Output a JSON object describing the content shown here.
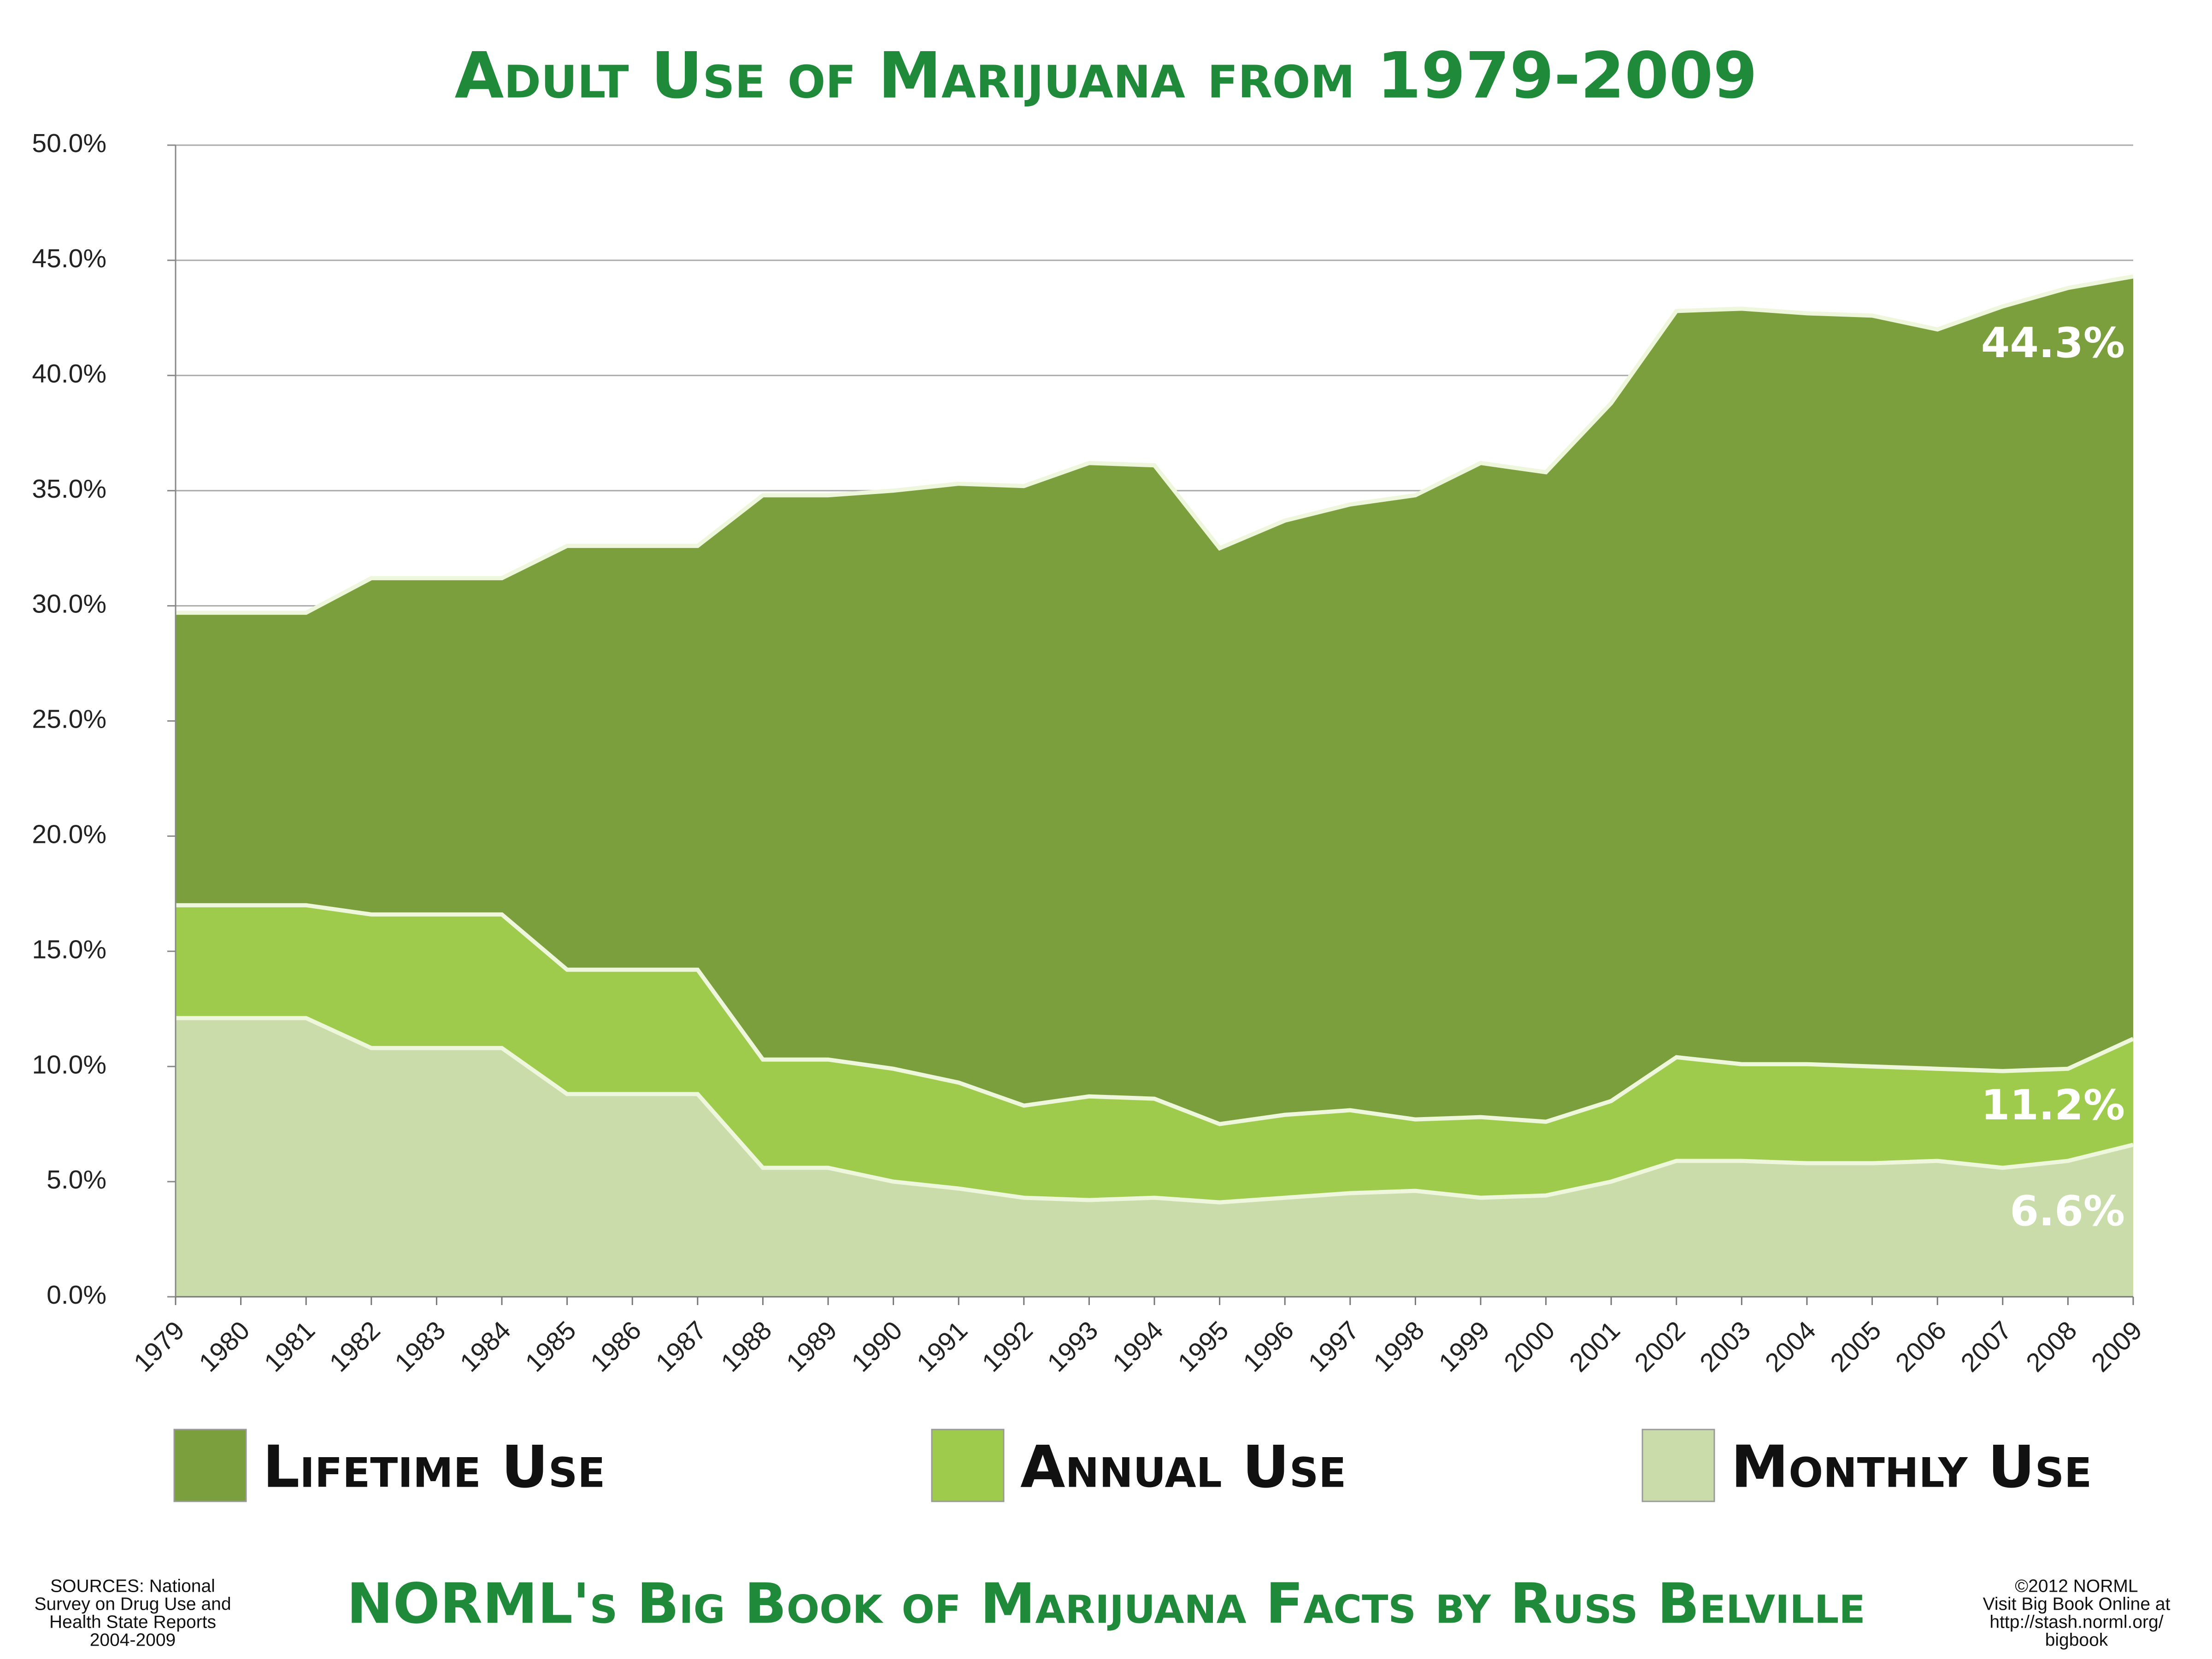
{
  "chart_data": {
    "type": "area",
    "title": "Adult Use of Marijuana from 1979-2009",
    "categories": [
      "1979",
      "1980",
      "1981",
      "1982",
      "1983",
      "1984",
      "1985",
      "1986",
      "1987",
      "1988",
      "1989",
      "1990",
      "1991",
      "1992",
      "1993",
      "1994",
      "1995",
      "1996",
      "1997",
      "1998",
      "1999",
      "2000",
      "2001",
      "2002",
      "2003",
      "2004",
      "2005",
      "2006",
      "2007",
      "2008",
      "2009"
    ],
    "series": [
      {
        "name": "Lifetime Use",
        "color": "#7b9f3c",
        "values": [
          29.7,
          29.7,
          29.7,
          31.2,
          31.2,
          31.2,
          32.6,
          32.6,
          32.6,
          34.8,
          34.8,
          35.0,
          35.3,
          35.2,
          36.2,
          36.1,
          32.5,
          33.7,
          34.4,
          34.8,
          36.2,
          35.8,
          38.8,
          42.8,
          42.9,
          42.7,
          42.6,
          42.0,
          43.0,
          43.8,
          44.3
        ],
        "value_labels": [
          null,
          null,
          null,
          null,
          null,
          null,
          null,
          null,
          null,
          null,
          null,
          null,
          null,
          null,
          null,
          null,
          null,
          null,
          null,
          null,
          null,
          null,
          null,
          null,
          null,
          null,
          null,
          null,
          null,
          null,
          "44.3%"
        ]
      },
      {
        "name": "Annual Use",
        "color": "#9fcb4c",
        "values": [
          17.0,
          17.0,
          17.0,
          16.6,
          16.6,
          16.6,
          14.2,
          14.2,
          14.2,
          10.3,
          10.3,
          9.9,
          9.3,
          8.3,
          8.7,
          8.6,
          7.5,
          7.9,
          8.1,
          7.7,
          7.8,
          7.6,
          8.5,
          10.4,
          10.1,
          10.1,
          10.0,
          9.9,
          9.8,
          9.9,
          11.2
        ],
        "value_labels": [
          null,
          null,
          null,
          null,
          null,
          null,
          null,
          null,
          null,
          null,
          null,
          null,
          null,
          null,
          null,
          null,
          null,
          null,
          null,
          null,
          null,
          null,
          null,
          null,
          null,
          null,
          null,
          null,
          null,
          null,
          "11.2%"
        ]
      },
      {
        "name": "Monthly Use",
        "color": "#c9dcaa",
        "values": [
          12.1,
          12.1,
          12.1,
          10.8,
          10.8,
          10.8,
          8.8,
          8.8,
          8.8,
          5.6,
          5.6,
          5.0,
          4.7,
          4.3,
          4.2,
          4.3,
          4.1,
          4.3,
          4.5,
          4.6,
          4.3,
          4.4,
          5.0,
          5.9,
          5.9,
          5.8,
          5.8,
          5.9,
          5.6,
          5.9,
          6.6
        ],
        "value_labels": [
          null,
          null,
          null,
          null,
          null,
          null,
          null,
          null,
          null,
          null,
          null,
          null,
          null,
          null,
          null,
          null,
          null,
          null,
          null,
          null,
          null,
          null,
          null,
          null,
          null,
          null,
          null,
          null,
          null,
          null,
          "6.6%"
        ]
      }
    ],
    "ylim": [
      0,
      50
    ],
    "yticks": [
      {
        "value": 0,
        "label": "0.0%"
      },
      {
        "value": 5,
        "label": "5.0%"
      },
      {
        "value": 10,
        "label": "10.0%"
      },
      {
        "value": 15,
        "label": "15.0%"
      },
      {
        "value": 20,
        "label": "20.0%"
      },
      {
        "value": 25,
        "label": "25.0%"
      },
      {
        "value": 30,
        "label": "30.0%"
      },
      {
        "value": 35,
        "label": "35.0%"
      },
      {
        "value": 40,
        "label": "40.0%"
      },
      {
        "value": 45,
        "label": "45.0%"
      },
      {
        "value": 50,
        "label": "50.0%"
      }
    ],
    "grid": true,
    "legend": "bottom",
    "sources": [
      "SOURCES: National",
      "Survey on Drug Use and",
      "Health State Reports",
      "2004-2009"
    ],
    "footer_title": "NORML's Big Book of Marijuana Facts by Russ Belville",
    "copyright": [
      "©2012 NORML",
      "Visit Big Book Online at",
      "http://stash.norml.org/",
      "bigbook"
    ]
  }
}
